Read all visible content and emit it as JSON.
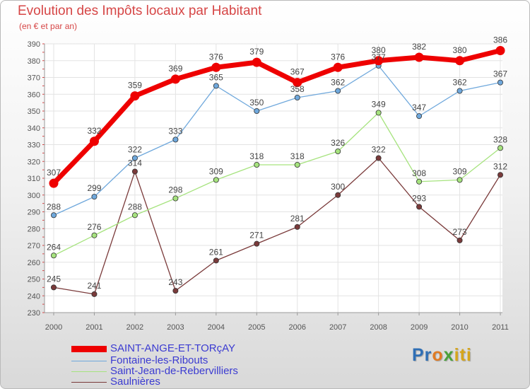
{
  "title": "Evolution des Impôts locaux par Habitant",
  "subtitle": "(en € et par an)",
  "chart_data": {
    "type": "line",
    "x": [
      "2000",
      "2001",
      "2002",
      "2003",
      "2004",
      "2005",
      "2006",
      "2007",
      "2008",
      "2009",
      "2010",
      "2011"
    ],
    "ylim": [
      230,
      390
    ],
    "yticks": [
      230,
      240,
      250,
      260,
      270,
      280,
      290,
      300,
      310,
      320,
      330,
      340,
      350,
      360,
      370,
      380,
      390
    ],
    "grid": true,
    "legend_position": "bottom-left",
    "series": [
      {
        "name": "SAINT-ANGE-ET-TORçAY",
        "color": "#ee0000",
        "values": [
          307,
          332,
          359,
          369,
          376,
          379,
          367,
          376,
          380,
          382,
          380,
          386
        ]
      },
      {
        "name": "Fontaine-les-Ribouts",
        "color": "#6fa8dc",
        "values": [
          288,
          299,
          322,
          333,
          365,
          350,
          358,
          362,
          377,
          347,
          362,
          367
        ]
      },
      {
        "name": "Saint-Jean-de-Rebervilliers",
        "color": "#a6e37e",
        "values": [
          264,
          276,
          288,
          298,
          309,
          318,
          318,
          326,
          349,
          308,
          309,
          328
        ]
      },
      {
        "name": "Saulnières",
        "color": "#7a3a3a",
        "values": [
          245,
          241,
          314,
          243,
          261,
          271,
          281,
          300,
          322,
          293,
          273,
          312
        ]
      }
    ]
  },
  "logo": {
    "p1": "Pr",
    "p2": "o",
    "p3": "x",
    "p4": "iti"
  }
}
